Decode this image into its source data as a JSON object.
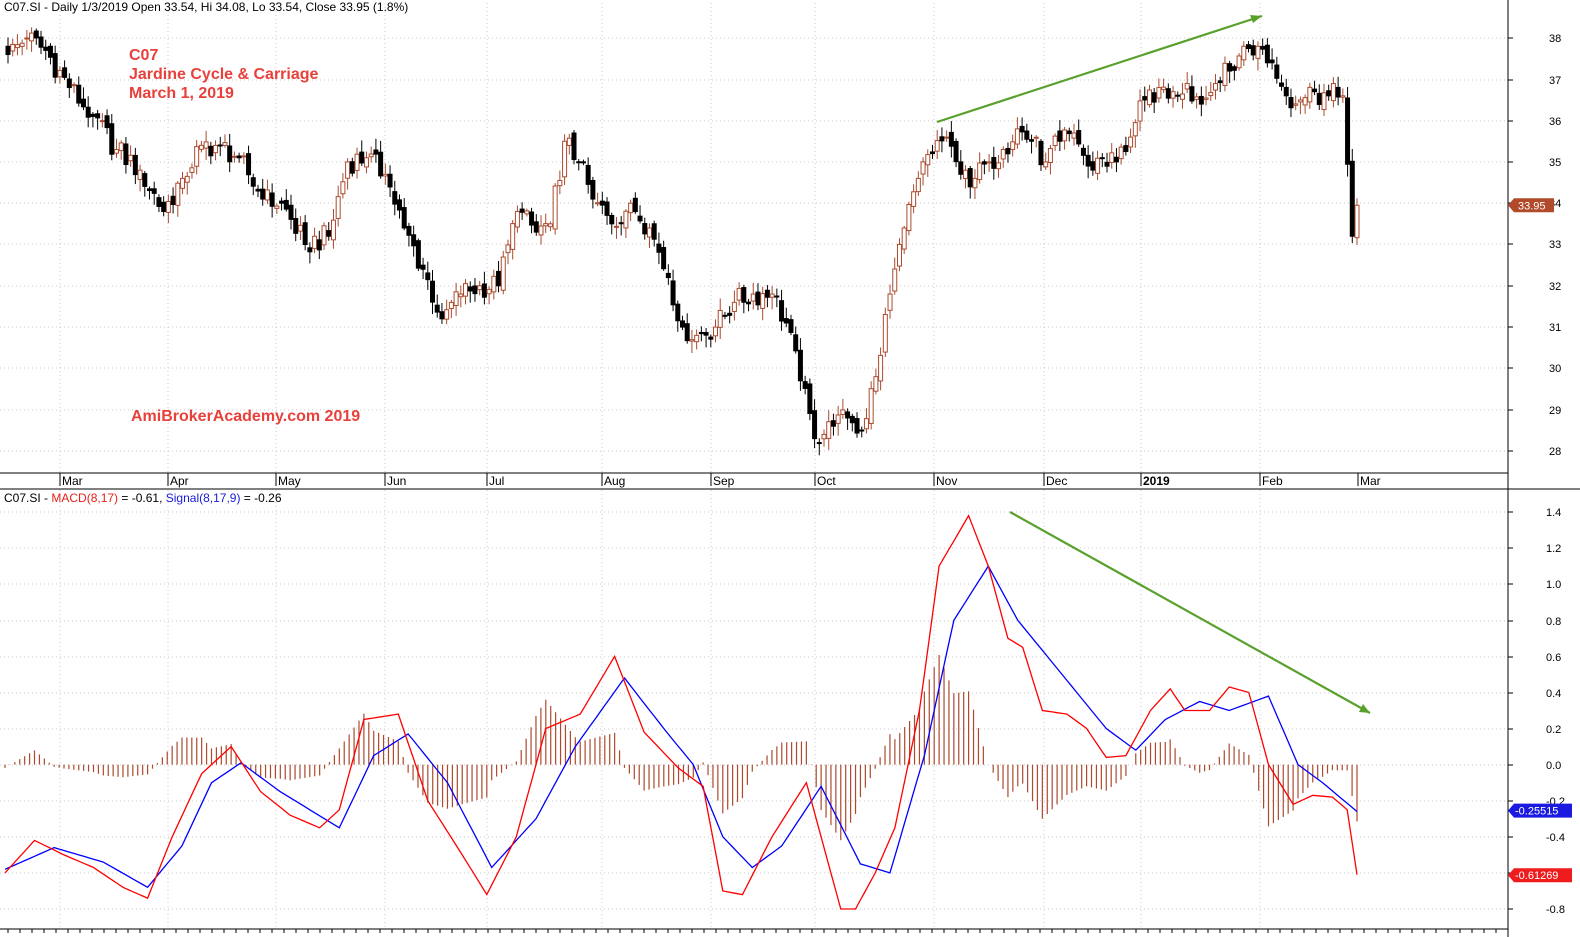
{
  "price_header": "C07.SI - Daily 1/3/2019 Open 33.54, Hi 34.08, Lo 33.54, Close 33.95 (1.8%)",
  "macd_header": {
    "prefix": "C07.SI - ",
    "macd_label": "MACD(8,17)",
    "macd_value": " = -0.61, ",
    "signal_label": "Signal(8,17,9)",
    "signal_value": " = -0.26"
  },
  "annotations": {
    "ticker": "C07",
    "company": "Jardine Cycle & Carriage",
    "date": "March 1, 2019",
    "watermark": "AmiBrokerAcademy.com  2019"
  },
  "colors": {
    "up_candle": "#ab4a2e",
    "down_candle": "#000000",
    "macd_line": "#ff0000",
    "signal_line": "#0000ff",
    "histogram": "#ab4a2e",
    "trend_arrow": "#5aa02c",
    "grid": "#c8c8c8"
  },
  "chart_data": [
    {
      "type": "candlestick",
      "title": "C07.SI - Daily",
      "x_labels": [
        "Mar",
        "Apr",
        "May",
        "Jun",
        "Jul",
        "Aug",
        "Sep",
        "Oct",
        "Nov",
        "Dec",
        "2019",
        "Feb",
        "Mar"
      ],
      "y_ticks": [
        28,
        29,
        30,
        31,
        32,
        33,
        34,
        35,
        36,
        37,
        38
      ],
      "ylim": [
        27.45,
        38.65
      ],
      "last_value_label": "33.95",
      "close_anchors": [
        {
          "i": 0,
          "c": 37.6
        },
        {
          "i": 4,
          "c": 38.0
        },
        {
          "i": 8,
          "c": 37.7
        },
        {
          "i": 13,
          "c": 36.8
        },
        {
          "i": 18,
          "c": 36.1
        },
        {
          "i": 23,
          "c": 35.3
        },
        {
          "i": 28,
          "c": 34.8
        },
        {
          "i": 33,
          "c": 33.8
        },
        {
          "i": 37,
          "c": 34.6
        },
        {
          "i": 41,
          "c": 35.4
        },
        {
          "i": 45,
          "c": 35.4
        },
        {
          "i": 49,
          "c": 35.1
        },
        {
          "i": 54,
          "c": 34.1
        },
        {
          "i": 58,
          "c": 34.0
        },
        {
          "i": 63,
          "c": 33.0
        },
        {
          "i": 68,
          "c": 33.2
        },
        {
          "i": 72,
          "c": 35.0
        },
        {
          "i": 76,
          "c": 35.1
        },
        {
          "i": 80,
          "c": 34.7
        },
        {
          "i": 84,
          "c": 33.4
        },
        {
          "i": 88,
          "c": 32.4
        },
        {
          "i": 92,
          "c": 31.2
        },
        {
          "i": 96,
          "c": 31.8
        },
        {
          "i": 100,
          "c": 32.0
        },
        {
          "i": 104,
          "c": 32.0
        },
        {
          "i": 108,
          "c": 33.8
        },
        {
          "i": 112,
          "c": 33.3
        },
        {
          "i": 115,
          "c": 33.5
        },
        {
          "i": 118,
          "c": 35.5
        },
        {
          "i": 121,
          "c": 35.0
        },
        {
          "i": 124,
          "c": 34.1
        },
        {
          "i": 128,
          "c": 33.5
        },
        {
          "i": 132,
          "c": 34.0
        },
        {
          "i": 136,
          "c": 33.4
        },
        {
          "i": 140,
          "c": 32.2
        },
        {
          "i": 143,
          "c": 31.0
        },
        {
          "i": 146,
          "c": 30.8
        },
        {
          "i": 150,
          "c": 31.0
        },
        {
          "i": 154,
          "c": 31.6
        },
        {
          "i": 158,
          "c": 31.8
        },
        {
          "i": 162,
          "c": 31.8
        },
        {
          "i": 165,
          "c": 31.1
        },
        {
          "i": 168,
          "c": 29.7
        },
        {
          "i": 171,
          "c": 28.3
        },
        {
          "i": 175,
          "c": 28.6
        },
        {
          "i": 178,
          "c": 28.8
        },
        {
          "i": 181,
          "c": 28.5
        },
        {
          "i": 184,
          "c": 29.8
        },
        {
          "i": 187,
          "c": 31.8
        },
        {
          "i": 190,
          "c": 33.4
        },
        {
          "i": 193,
          "c": 34.6
        },
        {
          "i": 196,
          "c": 35.2
        },
        {
          "i": 199,
          "c": 35.6
        },
        {
          "i": 202,
          "c": 34.7
        },
        {
          "i": 205,
          "c": 34.6
        },
        {
          "i": 208,
          "c": 35.0
        },
        {
          "i": 211,
          "c": 35.3
        },
        {
          "i": 214,
          "c": 35.8
        },
        {
          "i": 217,
          "c": 35.5
        },
        {
          "i": 220,
          "c": 35.0
        },
        {
          "i": 223,
          "c": 35.5
        },
        {
          "i": 226,
          "c": 35.7
        },
        {
          "i": 229,
          "c": 34.9
        },
        {
          "i": 232,
          "c": 35.1
        },
        {
          "i": 235,
          "c": 35.0
        },
        {
          "i": 238,
          "c": 35.6
        },
        {
          "i": 241,
          "c": 36.5
        },
        {
          "i": 244,
          "c": 36.8
        },
        {
          "i": 247,
          "c": 36.7
        },
        {
          "i": 250,
          "c": 36.9
        },
        {
          "i": 253,
          "c": 36.4
        },
        {
          "i": 256,
          "c": 36.9
        },
        {
          "i": 259,
          "c": 37.2
        },
        {
          "i": 262,
          "c": 37.8
        },
        {
          "i": 265,
          "c": 37.8
        },
        {
          "i": 268,
          "c": 37.4
        },
        {
          "i": 271,
          "c": 36.6
        },
        {
          "i": 274,
          "c": 36.5
        },
        {
          "i": 277,
          "c": 36.7
        },
        {
          "i": 280,
          "c": 36.6
        },
        {
          "i": 283,
          "c": 36.6
        },
        {
          "i": 285,
          "c": 33.2
        },
        {
          "i": 286,
          "c": 33.95
        }
      ]
    },
    {
      "type": "macd",
      "title": "MACD(8,17) / Signal(8,17,9)",
      "y_ticks": [
        -0.8,
        -0.6,
        -0.4,
        -0.2,
        0.0,
        0.2,
        0.4,
        0.6,
        0.8,
        1.0,
        1.2,
        1.4
      ],
      "y_tick_labels": [
        "-0.8",
        "-0.6",
        "-0.4",
        "-0.2",
        "0.0",
        "0.2",
        "0.4",
        "0.6",
        "0.8",
        "1.0",
        "1.2",
        "1.4"
      ],
      "ylim": [
        -0.88,
        1.5
      ],
      "macd_value_label": "-0.61269",
      "signal_value_label": "-0.25515",
      "macd_anchors": [
        {
          "i": 0,
          "v": -0.6
        },
        {
          "i": 6,
          "v": -0.42
        },
        {
          "i": 12,
          "v": -0.5
        },
        {
          "i": 18,
          "v": -0.57
        },
        {
          "i": 24,
          "v": -0.68
        },
        {
          "i": 29,
          "v": -0.74
        },
        {
          "i": 34,
          "v": -0.4
        },
        {
          "i": 40,
          "v": -0.05
        },
        {
          "i": 46,
          "v": 0.1
        },
        {
          "i": 52,
          "v": -0.15
        },
        {
          "i": 58,
          "v": -0.28
        },
        {
          "i": 64,
          "v": -0.35
        },
        {
          "i": 68,
          "v": -0.25
        },
        {
          "i": 73,
          "v": 0.25
        },
        {
          "i": 80,
          "v": 0.28
        },
        {
          "i": 86,
          "v": -0.2
        },
        {
          "i": 93,
          "v": -0.5
        },
        {
          "i": 98,
          "v": -0.72
        },
        {
          "i": 104,
          "v": -0.4
        },
        {
          "i": 110,
          "v": 0.2
        },
        {
          "i": 117,
          "v": 0.28
        },
        {
          "i": 124,
          "v": 0.6
        },
        {
          "i": 130,
          "v": 0.18
        },
        {
          "i": 137,
          "v": -0.02
        },
        {
          "i": 142,
          "v": -0.12
        },
        {
          "i": 146,
          "v": -0.7
        },
        {
          "i": 150,
          "v": -0.72
        },
        {
          "i": 156,
          "v": -0.4
        },
        {
          "i": 163,
          "v": -0.1
        },
        {
          "i": 166,
          "v": -0.4
        },
        {
          "i": 170,
          "v": -0.8
        },
        {
          "i": 173,
          "v": -0.8
        },
        {
          "i": 177,
          "v": -0.6
        },
        {
          "i": 181,
          "v": -0.35
        },
        {
          "i": 186,
          "v": 0.3
        },
        {
          "i": 190,
          "v": 1.1
        },
        {
          "i": 196,
          "v": 1.38
        },
        {
          "i": 200,
          "v": 1.1
        },
        {
          "i": 204,
          "v": 0.7
        },
        {
          "i": 207,
          "v": 0.65
        },
        {
          "i": 211,
          "v": 0.3
        },
        {
          "i": 216,
          "v": 0.28
        },
        {
          "i": 220,
          "v": 0.2
        },
        {
          "i": 224,
          "v": 0.04
        },
        {
          "i": 228,
          "v": 0.05
        },
        {
          "i": 233,
          "v": 0.3
        },
        {
          "i": 237,
          "v": 0.42
        },
        {
          "i": 240,
          "v": 0.3
        },
        {
          "i": 245,
          "v": 0.3
        },
        {
          "i": 249,
          "v": 0.43
        },
        {
          "i": 253,
          "v": 0.4
        },
        {
          "i": 257,
          "v": 0.0
        },
        {
          "i": 262,
          "v": -0.22
        },
        {
          "i": 266,
          "v": -0.17
        },
        {
          "i": 270,
          "v": -0.18
        },
        {
          "i": 273,
          "v": -0.25
        },
        {
          "i": 275,
          "v": -0.61
        }
      ],
      "signal_anchors": [
        {
          "i": 0,
          "v": -0.58
        },
        {
          "i": 10,
          "v": -0.46
        },
        {
          "i": 20,
          "v": -0.54
        },
        {
          "i": 29,
          "v": -0.68
        },
        {
          "i": 36,
          "v": -0.45
        },
        {
          "i": 42,
          "v": -0.1
        },
        {
          "i": 48,
          "v": 0.01
        },
        {
          "i": 56,
          "v": -0.15
        },
        {
          "i": 68,
          "v": -0.35
        },
        {
          "i": 75,
          "v": 0.05
        },
        {
          "i": 82,
          "v": 0.17
        },
        {
          "i": 90,
          "v": -0.1
        },
        {
          "i": 99,
          "v": -0.57
        },
        {
          "i": 108,
          "v": -0.3
        },
        {
          "i": 116,
          "v": 0.1
        },
        {
          "i": 126,
          "v": 0.48
        },
        {
          "i": 134,
          "v": 0.2
        },
        {
          "i": 140,
          "v": 0.0
        },
        {
          "i": 146,
          "v": -0.4
        },
        {
          "i": 152,
          "v": -0.57
        },
        {
          "i": 158,
          "v": -0.45
        },
        {
          "i": 166,
          "v": -0.12
        },
        {
          "i": 174,
          "v": -0.55
        },
        {
          "i": 180,
          "v": -0.6
        },
        {
          "i": 187,
          "v": 0.05
        },
        {
          "i": 193,
          "v": 0.8
        },
        {
          "i": 200,
          "v": 1.1
        },
        {
          "i": 206,
          "v": 0.8
        },
        {
          "i": 212,
          "v": 0.6
        },
        {
          "i": 218,
          "v": 0.4
        },
        {
          "i": 224,
          "v": 0.2
        },
        {
          "i": 230,
          "v": 0.08
        },
        {
          "i": 236,
          "v": 0.25
        },
        {
          "i": 243,
          "v": 0.35
        },
        {
          "i": 249,
          "v": 0.3
        },
        {
          "i": 257,
          "v": 0.38
        },
        {
          "i": 263,
          "v": 0.0
        },
        {
          "i": 268,
          "v": -0.1
        },
        {
          "i": 275,
          "v": -0.26
        }
      ]
    }
  ]
}
